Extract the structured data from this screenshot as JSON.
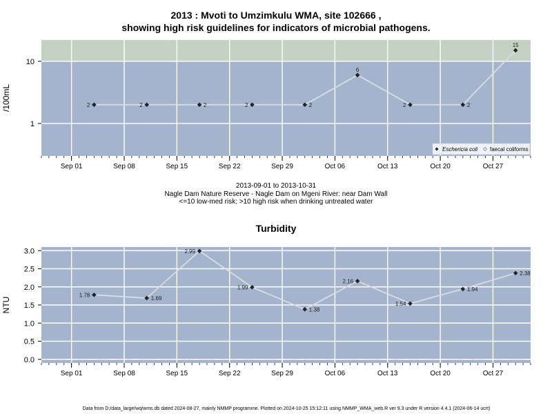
{
  "chart1": {
    "title_line1": "2013 : Mvoti to Umzimkulu WMA, site 102666 ,",
    "title_line2": "showing high risk guidelines for indicators of microbial pathogens.",
    "ylabel": "/100mL",
    "caption_line1": "2013-09-01 to 2013-10-31",
    "caption_line2": "Nagle Dam Nature Reserve - Nagle Dam on Mgeni River: near Dam Wall",
    "caption_line3": "<=10 low-med risk; >10 high risk when drinking untreated water",
    "legend": [
      "Eschericia coli",
      "faecal coliforms"
    ]
  },
  "chart2": {
    "title": "Turbidity",
    "ylabel": "NTU"
  },
  "footer": "Data from D:/data_large/wq/wms.db dated 2024-08-27, mainly NMMP programme. Plotted on 2024-10-25 15:12:11 using NMMP_WMA_web.R ver 9.3 under R version 4.4.1 (2024-06-14 ucrt)",
  "colors": {
    "panel_background": "#a3b4cc",
    "high_risk_band": "#c5d1c3",
    "line": "#d9dde3",
    "point": "#222222",
    "grid": "#ffffff"
  },
  "chart_data": [
    {
      "type": "line",
      "title": "2013 : Mvoti to Umzimkulu WMA, site 102666 , showing high risk guidelines for indicators of microbial pathogens.",
      "ylabel": "/100mL",
      "y_scale": "log",
      "ylim": [
        0.3,
        22
      ],
      "y_ticks": [
        1,
        10
      ],
      "high_risk_threshold": 10,
      "xlim": [
        "2013-08-28",
        "2013-11-01"
      ],
      "x_ticks": [
        "Sep 01",
        "Sep 08",
        "Sep 15",
        "Sep 22",
        "Sep 29",
        "Oct 06",
        "Oct 13",
        "Oct 20",
        "Oct 27"
      ],
      "x_tick_dates": [
        "2013-09-01",
        "2013-09-08",
        "2013-09-15",
        "2013-09-22",
        "2013-09-29",
        "2013-10-06",
        "2013-10-13",
        "2013-10-20",
        "2013-10-27"
      ],
      "grid": true,
      "legend_position": "bottom-right",
      "series": [
        {
          "name": "Eschericia coli",
          "x": [
            "2013-09-04",
            "2013-09-11",
            "2013-09-18",
            "2013-09-25",
            "2013-10-02",
            "2013-10-09",
            "2013-10-16",
            "2013-10-23",
            "2013-10-30"
          ],
          "values": [
            2,
            2,
            2,
            2,
            2,
            6,
            2,
            2,
            15
          ],
          "labels": [
            "2",
            "2",
            "2",
            "2",
            "2",
            "6",
            "2",
            "2",
            "15"
          ],
          "label_side": [
            "left",
            "left",
            "right",
            "left",
            "right",
            "above",
            "left",
            "right",
            "above"
          ]
        }
      ]
    },
    {
      "type": "line",
      "title": "Turbidity",
      "ylabel": "NTU",
      "ylim": [
        -0.1,
        3.1
      ],
      "y_ticks": [
        0.0,
        0.5,
        1.0,
        1.5,
        2.0,
        2.5,
        3.0
      ],
      "y_tick_labels": [
        "0.0",
        "0.5",
        "1.0",
        "1.5",
        "2.0",
        "2.5",
        "3.0"
      ],
      "xlim": [
        "2013-08-28",
        "2013-11-01"
      ],
      "x_ticks": [
        "Sep 01",
        "Sep 08",
        "Sep 15",
        "Sep 22",
        "Sep 29",
        "Oct 06",
        "Oct 13",
        "Oct 20",
        "Oct 27"
      ],
      "x_tick_dates": [
        "2013-09-01",
        "2013-09-08",
        "2013-09-15",
        "2013-09-22",
        "2013-09-29",
        "2013-10-06",
        "2013-10-13",
        "2013-10-20",
        "2013-10-27"
      ],
      "grid": true,
      "series": [
        {
          "x": [
            "2013-09-04",
            "2013-09-11",
            "2013-09-18",
            "2013-09-25",
            "2013-10-02",
            "2013-10-09",
            "2013-10-16",
            "2013-10-23",
            "2013-10-30"
          ],
          "values": [
            1.78,
            1.69,
            2.99,
            1.99,
            1.38,
            2.16,
            1.54,
            1.94,
            2.38
          ],
          "labels": [
            "1.78",
            "1.69",
            "2.99",
            "1.99",
            "1.38",
            "2.16",
            "1.54",
            "1.94",
            "2.38"
          ],
          "label_side": [
            "left",
            "right",
            "left",
            "left",
            "right",
            "left",
            "left",
            "right",
            "right"
          ]
        }
      ]
    }
  ]
}
